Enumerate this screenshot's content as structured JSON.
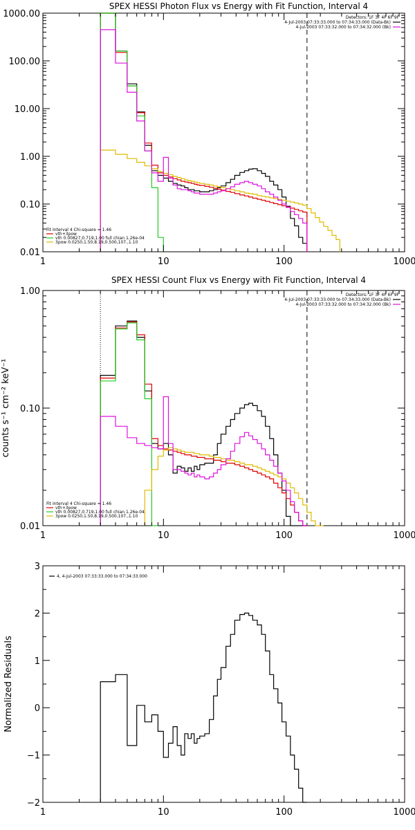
{
  "colors": {
    "black": "#000000",
    "red": "#dd0000",
    "green": "#22cc22",
    "magenta": "#dd11dd",
    "yellow": "#ddbb00"
  },
  "chart_data": [
    {
      "type": "line",
      "title": "SPEX HESSI Photon Flux vs Energy with Fit Function, Interval 4",
      "ylabel": "",
      "xscale": "log",
      "yscale": "log",
      "xlim": [
        1,
        1000
      ],
      "ylim": [
        0.01,
        1000
      ],
      "xticks": [
        "1",
        "10",
        "100",
        "1000"
      ],
      "yticks": [
        "0.01",
        "0.10",
        "1.00",
        "10.00",
        "100.00",
        "1000.00"
      ],
      "ytick_values": [
        0.01,
        0.1,
        1,
        10,
        100,
        1000
      ],
      "vlines": [
        {
          "x": 3,
          "style": "dotted"
        },
        {
          "x": 155,
          "style": "dashed"
        }
      ],
      "legend_right": [
        "Detectors: 1F 3F 4F 6F 9F",
        "4-Jul-2003 07:33:33.000 to 07:34:33.000 (Data-Bk)",
        "4-Jul-2003 07:33:32.000 to 07:34:32.000 (Bk)"
      ],
      "legend_left": [
        "Fit Interval 4   Chi-square = 1.46",
        "vth+3pow",
        "vth 0.00827,0.719,1.00  full chian 1.26e-04",
        "3pow 0.0250,1.50,8.19,0.500,107.,1.10"
      ],
      "series": [
        {
          "name": "Data-Bk",
          "color": "black",
          "edges": [
            3,
            4,
            5,
            6,
            7,
            8,
            9,
            10,
            11,
            12,
            13,
            14,
            15,
            16,
            17,
            18,
            19,
            20,
            22,
            24,
            26,
            28,
            30,
            33,
            36,
            39,
            43,
            47,
            51,
            55,
            60,
            65,
            70,
            76,
            82,
            89,
            96,
            104,
            113,
            122,
            132,
            143,
            155
          ],
          "values": [
            1000,
            160,
            33,
            8.5,
            1.7,
            0.5,
            0.4,
            0.35,
            0.3,
            0.27,
            0.25,
            0.24,
            0.22,
            0.2,
            0.2,
            0.19,
            0.19,
            0.18,
            0.18,
            0.19,
            0.2,
            0.22,
            0.24,
            0.28,
            0.33,
            0.4,
            0.46,
            0.5,
            0.54,
            0.55,
            0.5,
            0.44,
            0.38,
            0.3,
            0.25,
            0.2,
            0.14,
            0.09,
            0.05,
            0.035,
            0.02,
            0.015
          ]
        },
        {
          "name": "vth+3pow",
          "color": "red",
          "edges": [
            3,
            4,
            5,
            6,
            7,
            8,
            9,
            10,
            11,
            12,
            13,
            14,
            15,
            16,
            17,
            18,
            19,
            20,
            22,
            24,
            26,
            28,
            30,
            33,
            36,
            39,
            43,
            47,
            51,
            55,
            60,
            65,
            70,
            76,
            82,
            89,
            96,
            104,
            113,
            122,
            132,
            143,
            155
          ],
          "values": [
            1000,
            150,
            30,
            8.2,
            1.9,
            0.65,
            0.45,
            0.4,
            0.37,
            0.34,
            0.32,
            0.3,
            0.29,
            0.28,
            0.27,
            0.26,
            0.25,
            0.245,
            0.235,
            0.225,
            0.215,
            0.205,
            0.195,
            0.185,
            0.175,
            0.165,
            0.155,
            0.148,
            0.14,
            0.133,
            0.126,
            0.12,
            0.114,
            0.108,
            0.102,
            0.097,
            0.092,
            0.087,
            0.082,
            0.077,
            0.072,
            0.068
          ]
        },
        {
          "name": "vth",
          "color": "green",
          "edges": [
            3,
            4,
            5,
            6,
            7,
            8,
            9,
            10
          ],
          "values": [
            1000,
            160,
            30,
            7,
            1.3,
            0.22,
            0.02
          ]
        },
        {
          "name": "3pow",
          "color": "yellow",
          "edges": [
            3,
            4,
            5,
            6,
            7,
            8,
            9,
            10,
            11,
            12,
            13,
            14,
            15,
            16,
            17,
            18,
            19,
            20,
            22,
            24,
            26,
            28,
            30,
            33,
            36,
            39,
            43,
            47,
            51,
            55,
            60,
            65,
            70,
            76,
            82,
            89,
            96,
            104,
            113,
            122,
            132,
            143,
            155,
            168,
            182,
            197,
            213,
            231,
            250,
            270,
            290
          ],
          "values": [
            1.35,
            1.1,
            0.9,
            0.75,
            0.63,
            0.55,
            0.48,
            0.44,
            0.41,
            0.38,
            0.36,
            0.34,
            0.32,
            0.31,
            0.3,
            0.29,
            0.28,
            0.27,
            0.26,
            0.25,
            0.24,
            0.23,
            0.22,
            0.21,
            0.2,
            0.19,
            0.18,
            0.17,
            0.165,
            0.16,
            0.15,
            0.145,
            0.14,
            0.135,
            0.13,
            0.125,
            0.12,
            0.115,
            0.11,
            0.105,
            0.1,
            0.095,
            0.08,
            0.065,
            0.052,
            0.042,
            0.034,
            0.028,
            0.022,
            0.018
          ]
        },
        {
          "name": "Bk",
          "color": "magenta",
          "edges": [
            3,
            4,
            5,
            6,
            7,
            8,
            9,
            10,
            11,
            12,
            13,
            14,
            15,
            16,
            17,
            18,
            19,
            20,
            22,
            24,
            26,
            28,
            30,
            33,
            36,
            39,
            43,
            47,
            51,
            55,
            60,
            65,
            70,
            76,
            82,
            89,
            96,
            104,
            113,
            122,
            132,
            143,
            155
          ],
          "values": [
            450,
            90,
            22,
            5.5,
            1.3,
            0.45,
            0.3,
            0.95,
            0.35,
            0.25,
            0.21,
            0.2,
            0.2,
            0.19,
            0.18,
            0.17,
            0.17,
            0.16,
            0.16,
            0.16,
            0.17,
            0.18,
            0.19,
            0.21,
            0.23,
            0.26,
            0.28,
            0.3,
            0.28,
            0.26,
            0.24,
            0.21,
            0.18,
            0.16,
            0.14,
            0.12,
            0.1,
            0.085,
            0.07,
            0.06,
            0.05,
            0.04
          ]
        }
      ]
    },
    {
      "type": "line",
      "title": "SPEX HESSI Count Flux vs Energy with Fit Function, Interval 4",
      "ylabel": "counts s⁻¹ cm⁻² keV⁻¹",
      "xscale": "log",
      "yscale": "log",
      "xlim": [
        1,
        1000
      ],
      "ylim": [
        0.01,
        1
      ],
      "xticks": [
        "1",
        "10",
        "100",
        "1000"
      ],
      "yticks": [
        "0.01",
        "0.10",
        "1.00"
      ],
      "ytick_values": [
        0.01,
        0.1,
        1
      ],
      "vlines": [
        {
          "x": 3,
          "style": "dotted"
        },
        {
          "x": 155,
          "style": "dashed"
        }
      ],
      "legend_right": [
        "Detectors: 1F 3F 4F 6F 9F",
        "4-Jul-2003 07:33:33.000 to 07:34:33.000 (Data-Bk)",
        "4-Jul-2003 07:33:32.000 to 07:34:32.000 (Bk)"
      ],
      "legend_left": [
        "Fit Interval 4   Chi-square = 1.46",
        "vth+3pow",
        "vth 0.00827,0.719,1.00  full chian 1.26e-04",
        "3pow 0.0250,1.50,8.19,0.500,107.,1.10"
      ],
      "series": [
        {
          "name": "Data-Bk",
          "color": "black",
          "edges": [
            3,
            4,
            5,
            6,
            7,
            8,
            9,
            10,
            11,
            12,
            13,
            14,
            15,
            16,
            17,
            18,
            19,
            20,
            22,
            24,
            26,
            28,
            30,
            33,
            36,
            39,
            43,
            47,
            51,
            55,
            60,
            65,
            70,
            76,
            82,
            89,
            96,
            104,
            113,
            122,
            132,
            143,
            155
          ],
          "values": [
            0.19,
            0.5,
            0.55,
            0.4,
            0.14,
            0.05,
            0.045,
            0.05,
            0.04,
            0.028,
            0.032,
            0.031,
            0.029,
            0.031,
            0.029,
            0.032,
            0.03,
            0.033,
            0.034,
            0.034,
            0.04,
            0.05,
            0.06,
            0.07,
            0.08,
            0.09,
            0.1,
            0.107,
            0.11,
            0.105,
            0.095,
            0.085,
            0.07,
            0.055,
            0.04,
            0.028,
            0.02,
            0.012,
            0.008,
            0.008,
            0.008,
            0.008
          ]
        },
        {
          "name": "vth+3pow",
          "color": "red",
          "edges": [
            3,
            4,
            5,
            6,
            7,
            8,
            9,
            10,
            11,
            12,
            13,
            14,
            15,
            16,
            17,
            18,
            19,
            20,
            22,
            24,
            26,
            28,
            30,
            33,
            36,
            39,
            43,
            47,
            51,
            55,
            60,
            65,
            70,
            76,
            82,
            89,
            96,
            104,
            113,
            122,
            132,
            143,
            155
          ],
          "values": [
            0.18,
            0.48,
            0.54,
            0.42,
            0.16,
            0.055,
            0.048,
            0.045,
            0.044,
            0.043,
            0.042,
            0.041,
            0.04,
            0.04,
            0.039,
            0.039,
            0.038,
            0.038,
            0.037,
            0.037,
            0.036,
            0.036,
            0.035,
            0.034,
            0.034,
            0.033,
            0.032,
            0.031,
            0.03,
            0.029,
            0.028,
            0.027,
            0.026,
            0.025,
            0.023,
            0.021,
            0.019,
            0.017,
            0.015,
            0.013,
            0.011,
            0.009
          ]
        },
        {
          "name": "vth",
          "color": "green",
          "edges": [
            3,
            4,
            5,
            6,
            7,
            8,
            9
          ],
          "values": [
            0.17,
            0.47,
            0.53,
            0.38,
            0.12,
            0.009
          ]
        },
        {
          "name": "3pow",
          "color": "yellow",
          "edges": [
            7,
            8,
            9,
            10,
            11,
            12,
            13,
            14,
            15,
            16,
            17,
            18,
            19,
            20,
            22,
            24,
            26,
            28,
            30,
            33,
            36,
            39,
            43,
            47,
            51,
            55,
            60,
            65,
            70,
            76,
            82,
            89,
            96,
            104,
            113,
            122,
            132,
            143,
            155,
            168,
            182,
            197,
            213
          ],
          "values": [
            0.02,
            0.03,
            0.039,
            0.044,
            0.046,
            0.045,
            0.044,
            0.043,
            0.042,
            0.042,
            0.042,
            0.041,
            0.041,
            0.04,
            0.04,
            0.039,
            0.038,
            0.038,
            0.037,
            0.036,
            0.036,
            0.035,
            0.034,
            0.033,
            0.033,
            0.032,
            0.031,
            0.03,
            0.029,
            0.028,
            0.027,
            0.026,
            0.025,
            0.023,
            0.021,
            0.019,
            0.017,
            0.015,
            0.013,
            0.011,
            0.01,
            0.008
          ]
        },
        {
          "name": "Bk",
          "color": "magenta",
          "edges": [
            3,
            4,
            5,
            6,
            7,
            8,
            9,
            10,
            11,
            12,
            13,
            14,
            15,
            16,
            17,
            18,
            19,
            20,
            22,
            24,
            26,
            28,
            30,
            33,
            36,
            39,
            43,
            47,
            51,
            55,
            60,
            65,
            70,
            76,
            82,
            89,
            96,
            104,
            113,
            122,
            132,
            143,
            155
          ],
          "values": [
            0.085,
            0.07,
            0.056,
            0.05,
            0.048,
            0.046,
            0.045,
            0.125,
            0.05,
            0.03,
            0.03,
            0.029,
            0.028,
            0.027,
            0.028,
            0.026,
            0.027,
            0.026,
            0.025,
            0.026,
            0.028,
            0.03,
            0.033,
            0.037,
            0.043,
            0.05,
            0.057,
            0.062,
            0.058,
            0.054,
            0.05,
            0.045,
            0.04,
            0.036,
            0.032,
            0.028,
            0.024,
            0.02,
            0.016,
            0.013,
            0.011,
            0.009
          ]
        }
      ]
    },
    {
      "type": "line",
      "title": "",
      "ylabel": "Normalized Residuals",
      "xscale": "log",
      "yscale": "linear",
      "xlim": [
        1,
        1000
      ],
      "ylim": [
        -2,
        3
      ],
      "xticks": [
        "1",
        "10",
        "100",
        "1000"
      ],
      "yticks": [
        "−2",
        "−1",
        "0",
        "1",
        "2",
        "3"
      ],
      "ytick_values": [
        -2,
        -1,
        0,
        1,
        2,
        3
      ],
      "legend_right": [],
      "legend_left": [
        "4, 4-Jul-2003 07:33:33.000 to 07:34:33.000"
      ],
      "series": [
        {
          "name": "4, 4-Jul-2003 07:33:33.000 to 07:34:33.000",
          "color": "black",
          "edges": [
            3,
            4,
            5,
            6,
            7,
            8,
            9,
            10,
            11,
            12,
            13,
            14,
            15,
            16,
            17,
            18,
            19,
            20,
            22,
            24,
            26,
            28,
            30,
            33,
            36,
            39,
            43,
            47,
            51,
            55,
            60,
            65,
            70,
            76,
            82,
            89,
            96,
            104,
            113,
            122,
            132,
            143,
            155
          ],
          "values": [
            0.55,
            0.7,
            -0.8,
            0.05,
            -0.3,
            -0.15,
            -0.5,
            -1.05,
            -0.75,
            -0.4,
            -0.8,
            -1.0,
            -0.55,
            -0.65,
            -0.55,
            -0.75,
            -0.65,
            -0.6,
            -0.55,
            -0.25,
            0.25,
            0.6,
            0.85,
            1.3,
            1.55,
            1.85,
            1.97,
            2.0,
            1.95,
            1.85,
            1.75,
            1.55,
            1.2,
            0.7,
            0.4,
            0.1,
            -0.3,
            -0.6,
            -1.0,
            -1.3,
            -1.7,
            -2.0
          ]
        }
      ]
    }
  ]
}
